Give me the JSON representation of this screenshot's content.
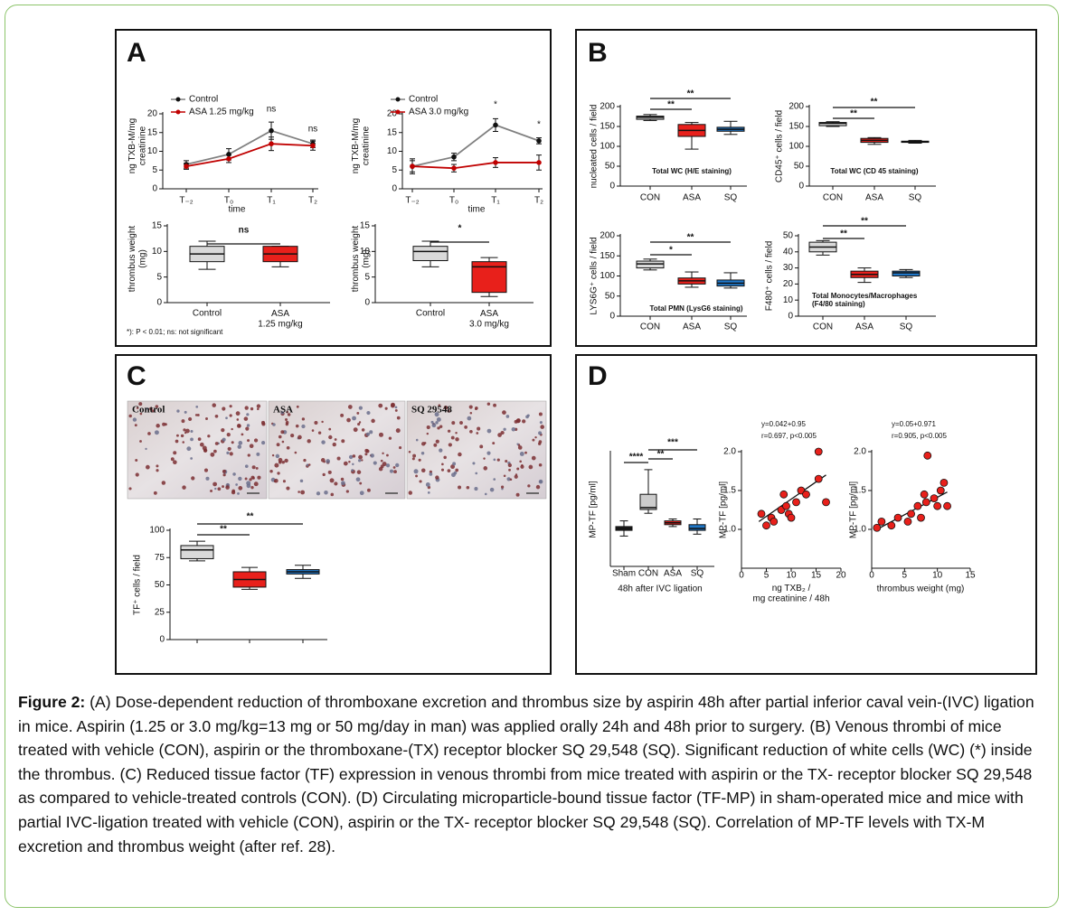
{
  "panel_labels": [
    "A",
    "B",
    "C",
    "D"
  ],
  "footnote": "*): P < 0.01; ns: not significant",
  "photo_labels": [
    "Control",
    "ASA",
    "SQ 29548"
  ],
  "chart_data": [
    {
      "type": "line",
      "ylabel": "ng TXB-M/mg\ncreatinine",
      "xlabel": "time",
      "categories": [
        "T₋₂",
        "T₀",
        "T₁",
        "T₂"
      ],
      "ylim": [
        0,
        20
      ],
      "yticks": [
        0,
        5,
        10,
        15,
        20
      ],
      "series": [
        {
          "name": "Control",
          "color": "#808080",
          "values": [
            6.5,
            9.2,
            15.5,
            12
          ],
          "errors": [
            1,
            1.5,
            2.3,
            1
          ]
        },
        {
          "name": "ASA 1.25 mg/kg",
          "color": "#c00000",
          "values": [
            6,
            8,
            12,
            11.5
          ],
          "errors": [
            0.8,
            1,
            1.8,
            1.2
          ]
        }
      ],
      "annotations": [
        "ns",
        "ns"
      ]
    },
    {
      "type": "line",
      "ylabel": "ng TXB-M/mg\ncreatinine",
      "xlabel": "time",
      "categories": [
        "T₋₂",
        "T₀",
        "T₁",
        "T₂"
      ],
      "ylim": [
        0,
        20
      ],
      "yticks": [
        0,
        5,
        10,
        15,
        20
      ],
      "series": [
        {
          "name": "Control",
          "color": "#808080",
          "values": [
            6,
            8.5,
            17,
            12.8
          ],
          "errors": [
            2,
            1,
            1.7,
            0.8
          ]
        },
        {
          "name": "ASA 3.0 mg/kg",
          "color": "#c00000",
          "values": [
            6,
            5.5,
            7,
            7
          ],
          "errors": [
            1.5,
            1,
            1.3,
            2
          ]
        }
      ],
      "annotations": [
        "*",
        "*"
      ]
    },
    {
      "type": "box",
      "ylabel": "thrombus weight\n(mg)",
      "categories": [
        "Control",
        "ASA\n1.25 mg/kg"
      ],
      "ylim": [
        0,
        15
      ],
      "yticks": [
        0,
        5,
        10,
        15
      ],
      "boxes": [
        {
          "min": 6.5,
          "q1": 8,
          "median": 9.5,
          "q3": 11,
          "max": 12,
          "color": "#d9d9d9"
        },
        {
          "min": 7,
          "q1": 8,
          "median": 9.5,
          "q3": 11,
          "max": 11,
          "color": "#e8201b"
        }
      ],
      "annotations": [
        "ns"
      ]
    },
    {
      "type": "box",
      "ylabel": "thrombus weight\n(mg)",
      "categories": [
        "Control",
        "ASA\n3.0 mg/kg"
      ],
      "ylim": [
        0,
        15
      ],
      "yticks": [
        0,
        5,
        10,
        15
      ],
      "boxes": [
        {
          "min": 7,
          "q1": 8.2,
          "median": 10,
          "q3": 11,
          "max": 12,
          "color": "#d9d9d9"
        },
        {
          "min": 1.2,
          "q1": 2,
          "median": 7,
          "q3": 8,
          "max": 8.8,
          "color": "#e8201b"
        }
      ],
      "annotations": [
        "*"
      ]
    },
    {
      "type": "box",
      "ylabel": "nucleated cells / field",
      "categories": [
        "CON",
        "ASA",
        "SQ"
      ],
      "ylim": [
        0,
        200
      ],
      "yticks": [
        0,
        50,
        100,
        150,
        200
      ],
      "note": "Total WC (H/E staining)",
      "boxes": [
        {
          "min": 165,
          "q1": 168,
          "median": 173,
          "q3": 176,
          "max": 180,
          "color": "#d9d9d9"
        },
        {
          "min": 93,
          "q1": 125,
          "median": 140,
          "q3": 155,
          "max": 160,
          "color": "#e8201b"
        },
        {
          "min": 130,
          "q1": 138,
          "median": 143,
          "q3": 148,
          "max": 163,
          "color": "#1f77c8"
        }
      ],
      "annotations": [
        "**",
        "**"
      ]
    },
    {
      "type": "box",
      "ylabel": "CD45⁺ cells / field",
      "categories": [
        "CON",
        "ASA",
        "SQ"
      ],
      "ylim": [
        0,
        200
      ],
      "yticks": [
        0,
        50,
        100,
        150,
        200
      ],
      "note": "Total WC (CD 45 staining)",
      "boxes": [
        {
          "min": 150,
          "q1": 152,
          "median": 158,
          "q3": 160,
          "max": 162,
          "color": "#d9d9d9"
        },
        {
          "min": 105,
          "q1": 110,
          "median": 115,
          "q3": 120,
          "max": 122,
          "color": "#e8201b"
        },
        {
          "min": 108,
          "q1": 110,
          "median": 112,
          "q3": 113,
          "max": 115,
          "color": "#1f77c8"
        }
      ],
      "annotations": [
        "**",
        "**"
      ]
    },
    {
      "type": "box",
      "ylabel": "LYS6G⁺ cells / field",
      "categories": [
        "CON",
        "ASA",
        "SQ"
      ],
      "ylim": [
        0,
        200
      ],
      "yticks": [
        0,
        50,
        100,
        150,
        200
      ],
      "note": "Total PMN (LysG6 staining)",
      "boxes": [
        {
          "min": 115,
          "q1": 120,
          "median": 130,
          "q3": 137,
          "max": 142,
          "color": "#d9d9d9"
        },
        {
          "min": 72,
          "q1": 80,
          "median": 88,
          "q3": 95,
          "max": 110,
          "color": "#e8201b"
        },
        {
          "min": 70,
          "q1": 75,
          "median": 82,
          "q3": 90,
          "max": 108,
          "color": "#1f77c8"
        }
      ],
      "annotations": [
        "**",
        "*"
      ]
    },
    {
      "type": "box",
      "ylabel": "F480⁺ cells / field",
      "categories": [
        "CON",
        "ASA",
        "SQ"
      ],
      "ylim": [
        0,
        50
      ],
      "yticks": [
        0,
        10,
        20,
        30,
        40,
        50
      ],
      "note": "Total Monocytes/Macrophages\n(F4/80 staining)",
      "boxes": [
        {
          "min": 38,
          "q1": 40,
          "median": 43,
          "q3": 46,
          "max": 47,
          "color": "#d9d9d9"
        },
        {
          "min": 21,
          "q1": 24,
          "median": 26,
          "q3": 28,
          "max": 30,
          "color": "#e8201b"
        },
        {
          "min": 24,
          "q1": 25,
          "median": 27,
          "q3": 28,
          "max": 29,
          "color": "#1f77c8"
        }
      ],
      "annotations": [
        "**",
        "**"
      ]
    },
    {
      "type": "box",
      "ylabel": "TF⁺ cells / field",
      "categories": [
        null,
        null,
        null
      ],
      "ylim": [
        0,
        100
      ],
      "yticks": [
        0,
        25,
        50,
        75,
        100
      ],
      "boxes": [
        {
          "min": 72,
          "q1": 74,
          "median": 82,
          "q3": 86,
          "max": 90,
          "color": "#d9d9d9"
        },
        {
          "min": 46,
          "q1": 48,
          "median": 55,
          "q3": 62,
          "max": 66,
          "color": "#e8201b"
        },
        {
          "min": 56,
          "q1": 60,
          "median": 62,
          "q3": 64,
          "max": 68,
          "color": "#1f77c8"
        }
      ],
      "annotations": [
        "**",
        "**"
      ]
    },
    {
      "type": "box",
      "ylabel": "MP-TF [pg/ml]",
      "xlabel": "48h after IVC ligation",
      "categories": [
        "Sham",
        "CON",
        "ASA",
        "SQ"
      ],
      "ylim": [
        0,
        3
      ],
      "boxes": [
        {
          "min": 0.8,
          "q1": 0.95,
          "median": 1.0,
          "q3": 1.05,
          "max": 1.2,
          "color": "#222222"
        },
        {
          "min": 1.4,
          "q1": 1.5,
          "median": 1.55,
          "q3": 1.9,
          "max": 2.55,
          "color": "#cccccc"
        },
        {
          "min": 1.05,
          "q1": 1.1,
          "median": 1.15,
          "q3": 1.2,
          "max": 1.25,
          "color": "#e8201b"
        },
        {
          "min": 0.85,
          "q1": 0.95,
          "median": 1.0,
          "q3": 1.1,
          "max": 1.25,
          "color": "#1f77c8"
        }
      ],
      "annotations": [
        "****",
        "**",
        "***"
      ]
    },
    {
      "type": "scatter",
      "ylabel": "MP-TF [pg/ml]",
      "xlabel": "ng TXB₂ /\nmg creatinine / 48h",
      "xlim": [
        0,
        20
      ],
      "xticks": [
        0,
        5,
        10,
        15,
        20
      ],
      "ylim": [
        0.5,
        2.0
      ],
      "yticks": [
        {
          "value": 1.0,
          "label": "1.0"
        },
        {
          "value": 1.5,
          "label": "1.5"
        },
        {
          "value": 2.0,
          "label": "2.0"
        }
      ],
      "annotations": [
        "y=0.042+0.95",
        "r=0.697, p<0.005"
      ],
      "color": "#e8201b",
      "x": [
        4,
        5,
        6,
        6.5,
        8,
        8.5,
        9,
        9.5,
        10,
        11,
        12,
        13,
        15.5,
        15.5,
        17
      ],
      "y": [
        1.2,
        1.05,
        1.15,
        1.1,
        1.25,
        1.45,
        1.3,
        1.2,
        1.15,
        1.35,
        1.5,
        1.45,
        2.0,
        1.65,
        1.35
      ],
      "fit_line": {
        "x": [
          3.5,
          17
        ],
        "y": [
          1.1,
          1.7
        ]
      }
    },
    {
      "type": "scatter",
      "ylabel": "MP-TF [pg/ml]",
      "xlabel": "thrombus weight (mg)",
      "xlim": [
        0,
        15
      ],
      "xticks": [
        0,
        5,
        10,
        15
      ],
      "ylim": [
        0.5,
        2.0
      ],
      "yticks": [
        {
          "value": 1.0,
          "label": "1.0"
        },
        {
          "value": 1.5,
          "label": "1.5"
        },
        {
          "value": 2.0,
          "label": "2.0"
        }
      ],
      "annotations": [
        "y=0.05+0.971",
        "r=0.905, p<0.005"
      ],
      "color": "#e8201b",
      "x": [
        0.8,
        1.5,
        3,
        4,
        5.5,
        6,
        7,
        7.5,
        8,
        8.3,
        8.5,
        9.5,
        10,
        10.5,
        11,
        11.5
      ],
      "y": [
        1.02,
        1.1,
        1.05,
        1.15,
        1.1,
        1.2,
        1.3,
        1.15,
        1.45,
        1.35,
        1.95,
        1.4,
        1.3,
        1.5,
        1.6,
        1.3
      ],
      "fit_line": {
        "x": [
          0.8,
          11.5
        ],
        "y": [
          1.0,
          1.48
        ]
      }
    }
  ],
  "caption": {
    "label": "Figure 2:",
    "text": " (A) Dose-dependent reduction of thromboxane excretion and thrombus size by aspirin 48h after partial inferior caval vein-(IVC) ligation in mice. Aspirin (1.25 or 3.0 mg/kg=13 mg or 50 mg/day in man) was applied orally 24h and 48h prior to surgery. (B) Venous thrombi of mice treated with vehicle (CON), aspirin or the thromboxane-(TX) receptor blocker SQ 29,548 (SQ). Significant reduction of white cells (WC) (*) inside the thrombus. (C) Reduced tissue factor (TF) expression in venous thrombi from mice treated with aspirin or the TX- receptor blocker SQ 29,548 as compared to vehicle-treated controls (CON). (D) Circulating microparticle-bound tissue factor (TF-MP) in sham-operated mice and mice with partial IVC-ligation treated with vehicle (CON), aspirin or the TX- receptor blocker SQ 29,548 (SQ). Correlation of MP-TF levels with TX-M excretion and thrombus weight (after ref. 28)."
  }
}
